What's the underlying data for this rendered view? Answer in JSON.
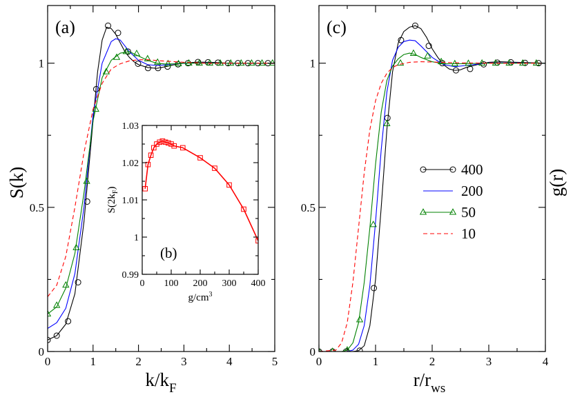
{
  "chart_data": [
    {
      "type": "line",
      "panel_label": "(a)",
      "xlabel": "k/k",
      "xlabel_sub": "F",
      "ylabel": "S(k)",
      "xlim": [
        0,
        5
      ],
      "ylim": [
        0,
        1.2
      ],
      "xticks": [
        0,
        1,
        2,
        3,
        4,
        5
      ],
      "yticks": [
        0,
        0.5,
        1
      ],
      "series": [
        {
          "name": "400",
          "color": "#000000",
          "marker": "circle",
          "dash": "",
          "x": [
            0,
            0.2,
            0.4,
            0.6,
            0.8,
            1.0,
            1.1,
            1.2,
            1.3,
            1.4,
            1.5,
            1.6,
            1.7,
            1.8,
            1.9,
            2.0,
            2.2,
            2.4,
            2.6,
            2.8,
            3.0,
            3.3,
            3.6,
            4.0,
            4.5,
            5.0
          ],
          "y": [
            0.04,
            0.055,
            0.095,
            0.2,
            0.45,
            0.8,
            0.97,
            1.08,
            1.125,
            1.12,
            1.1,
            1.07,
            1.04,
            1.02,
            1.005,
            0.995,
            0.985,
            0.982,
            0.988,
            0.995,
            1.0,
            1.004,
            1.003,
            1.0,
            1.0,
            1.0
          ],
          "markers_x": [
            0,
            0.2,
            0.45,
            0.67,
            0.87,
            1.07,
            1.33,
            1.55,
            1.77,
            1.99,
            2.21,
            2.43,
            2.64,
            2.87,
            3.09,
            3.31,
            3.53,
            3.75,
            3.97,
            4.19,
            4.41,
            4.63,
            4.85
          ],
          "markers_y": [
            0.04,
            0.055,
            0.105,
            0.24,
            0.52,
            0.91,
            1.13,
            1.105,
            1.04,
            0.998,
            0.983,
            0.983,
            0.988,
            0.996,
            1.0,
            1.004,
            1.003,
            1.002,
            1.0,
            1.0,
            1.0,
            1.0,
            1.0
          ]
        },
        {
          "name": "200",
          "color": "#0000ff",
          "marker": "none",
          "dash": "",
          "x": [
            0,
            0.2,
            0.4,
            0.6,
            0.8,
            1.0,
            1.2,
            1.4,
            1.5,
            1.6,
            1.7,
            1.8,
            2.0,
            2.2,
            2.4,
            2.6,
            2.8,
            3.0,
            3.5,
            4.0,
            5.0
          ],
          "y": [
            0.08,
            0.1,
            0.15,
            0.27,
            0.5,
            0.82,
            1.0,
            1.075,
            1.085,
            1.08,
            1.06,
            1.04,
            1.01,
            0.995,
            0.992,
            0.994,
            0.998,
            1.0,
            1.001,
            1.0,
            1.0
          ]
        },
        {
          "name": "50",
          "color": "#008000",
          "marker": "triangle",
          "dash": "",
          "x": [
            0,
            0.2,
            0.4,
            0.6,
            0.8,
            1.0,
            1.2,
            1.4,
            1.6,
            1.8,
            2.0,
            2.2,
            2.4,
            2.6,
            2.8,
            3.0,
            3.5,
            4.0,
            5.0
          ],
          "y": [
            0.13,
            0.155,
            0.22,
            0.34,
            0.55,
            0.8,
            0.95,
            1.01,
            1.035,
            1.04,
            1.025,
            1.01,
            1.0,
            0.997,
            0.998,
            1.0,
            1.0,
            1.0,
            1.0
          ],
          "markers_x": [
            0,
            0.2,
            0.4,
            0.63,
            0.86,
            1.06,
            1.29,
            1.52,
            1.73,
            1.96,
            2.2,
            2.42,
            2.65,
            2.88,
            3.11,
            3.34,
            3.57,
            3.8,
            4.03,
            4.26,
            4.49,
            4.72,
            4.95
          ],
          "markers_y": [
            0.13,
            0.16,
            0.23,
            0.36,
            0.59,
            0.84,
            0.97,
            1.02,
            1.04,
            1.033,
            1.015,
            1.003,
            0.998,
            0.998,
            1.0,
            1.0,
            1.0,
            1.0,
            1.0,
            1.0,
            1.0,
            1.0,
            1.0
          ]
        },
        {
          "name": "10",
          "color": "#ff0000",
          "marker": "none",
          "dash": "6,4",
          "x": [
            0,
            0.2,
            0.4,
            0.6,
            0.8,
            1.0,
            1.2,
            1.4,
            1.6,
            1.8,
            2.0,
            2.2,
            2.5,
            3.0,
            3.5,
            4.0,
            5.0
          ],
          "y": [
            0.19,
            0.23,
            0.33,
            0.5,
            0.69,
            0.84,
            0.93,
            0.98,
            0.998,
            1.008,
            1.012,
            1.012,
            1.008,
            1.003,
            1.0,
            1.0,
            1.0
          ]
        }
      ]
    },
    {
      "type": "line",
      "panel_label": "(b)",
      "xlabel": "g/cm",
      "xlabel_sup": "3",
      "ylabel": "S(2k",
      "ylabel_sub": "F",
      "ylabel_close": ")",
      "xlim": [
        0,
        400
      ],
      "ylim": [
        0.99,
        1.03
      ],
      "xticks": [
        0,
        100,
        200,
        300,
        400
      ],
      "yticks": [
        0.99,
        1.0,
        1.01,
        1.02,
        1.03
      ],
      "ytick_labels": [
        "0.99",
        "1",
        "1.01",
        "1.02",
        "1.03"
      ],
      "series": [
        {
          "name": "",
          "color": "#ff0000",
          "marker": "square",
          "dash": "",
          "x": [
            10,
            20,
            30,
            40,
            50,
            60,
            70,
            80,
            90,
            100,
            110,
            140,
            200,
            250,
            300,
            350,
            400
          ],
          "y": [
            1.013,
            1.0195,
            1.022,
            1.024,
            1.025,
            1.0255,
            1.0258,
            1.0255,
            1.0253,
            1.025,
            1.0245,
            1.024,
            1.0213,
            1.0185,
            1.014,
            1.0075,
            0.999
          ]
        }
      ]
    },
    {
      "type": "line",
      "panel_label": "(c)",
      "xlabel": "r/r",
      "xlabel_sub": "ws",
      "ylabel": "g(r)",
      "xlim": [
        0,
        4
      ],
      "ylim": [
        0,
        1.2
      ],
      "xticks": [
        0,
        1,
        2,
        3,
        4
      ],
      "yticks": [
        0,
        0.5,
        1
      ],
      "legend_position": "center-right",
      "series": [
        {
          "name": "400",
          "color": "#000000",
          "marker": "circle",
          "dash": "",
          "x": [
            0,
            0.6,
            0.7,
            0.8,
            0.9,
            1.0,
            1.1,
            1.2,
            1.3,
            1.4,
            1.5,
            1.6,
            1.7,
            1.8,
            1.9,
            2.0,
            2.1,
            2.2,
            2.3,
            2.4,
            2.5,
            2.6,
            2.8,
            3.0,
            3.2,
            3.5,
            4.0
          ],
          "y": [
            0,
            0,
            0.003,
            0.02,
            0.09,
            0.25,
            0.5,
            0.77,
            0.97,
            1.07,
            1.11,
            1.125,
            1.13,
            1.12,
            1.09,
            1.05,
            1.02,
            0.995,
            0.98,
            0.975,
            0.977,
            0.985,
            0.995,
            1.003,
            1.005,
            1.003,
            1.0
          ],
          "markers_x": [
            0,
            0.24,
            0.48,
            0.72,
            0.97,
            1.21,
            1.45,
            1.7,
            1.94,
            2.18,
            2.42,
            2.67,
            2.91,
            3.15,
            3.39,
            3.64,
            3.88
          ],
          "markers_y": [
            0,
            0,
            0,
            0.003,
            0.22,
            0.81,
            1.08,
            1.13,
            1.06,
            1.0,
            0.975,
            0.98,
            0.996,
            1.002,
            1.003,
            1.001,
            1.0
          ]
        },
        {
          "name": "200",
          "color": "#0000ff",
          "marker": "none",
          "dash": "",
          "x": [
            0,
            0.5,
            0.6,
            0.7,
            0.8,
            0.9,
            1.0,
            1.1,
            1.2,
            1.3,
            1.4,
            1.5,
            1.6,
            1.7,
            1.8,
            2.0,
            2.2,
            2.4,
            2.6,
            3.0,
            3.5,
            4.0
          ],
          "y": [
            0,
            0,
            0.005,
            0.025,
            0.09,
            0.23,
            0.45,
            0.7,
            0.9,
            1.01,
            1.055,
            1.075,
            1.08,
            1.078,
            1.06,
            1.02,
            0.995,
            0.988,
            0.992,
            1.001,
            1.001,
            1.0
          ]
        },
        {
          "name": "50",
          "color": "#008000",
          "marker": "triangle",
          "dash": "",
          "x": [
            0,
            0.4,
            0.5,
            0.6,
            0.7,
            0.8,
            0.9,
            1.0,
            1.1,
            1.2,
            1.3,
            1.4,
            1.5,
            1.6,
            1.7,
            1.8,
            2.0,
            2.2,
            2.5,
            3.0,
            3.5,
            4.0
          ],
          "y": [
            0,
            0,
            0.005,
            0.03,
            0.1,
            0.24,
            0.43,
            0.65,
            0.83,
            0.94,
            0.99,
            1.015,
            1.03,
            1.035,
            1.03,
            1.02,
            1.005,
            0.998,
            0.998,
            1.0,
            1.0,
            1.0
          ],
          "markers_x": [
            0,
            0.24,
            0.5,
            0.72,
            0.96,
            1.2,
            1.44,
            1.67,
            1.92,
            2.16,
            2.4,
            2.64,
            2.88,
            3.12,
            3.36,
            3.6,
            3.84
          ],
          "markers_y": [
            0,
            0,
            0.005,
            0.11,
            0.44,
            0.79,
            1.0,
            1.034,
            1.025,
            1.005,
            0.998,
            0.999,
            1.0,
            1.0,
            1.0,
            1.0,
            1.0
          ]
        },
        {
          "name": "10",
          "color": "#ff0000",
          "marker": "none",
          "dash": "6,4",
          "x": [
            0,
            0.3,
            0.4,
            0.5,
            0.6,
            0.7,
            0.8,
            0.9,
            1.0,
            1.1,
            1.2,
            1.3,
            1.4,
            1.6,
            1.8,
            2.0,
            2.5,
            3.0,
            4.0
          ],
          "y": [
            0,
            0.005,
            0.03,
            0.1,
            0.24,
            0.43,
            0.62,
            0.77,
            0.87,
            0.93,
            0.965,
            0.985,
            0.995,
            1.003,
            1.005,
            1.004,
            1.001,
            1.0,
            1.0
          ]
        }
      ]
    }
  ]
}
